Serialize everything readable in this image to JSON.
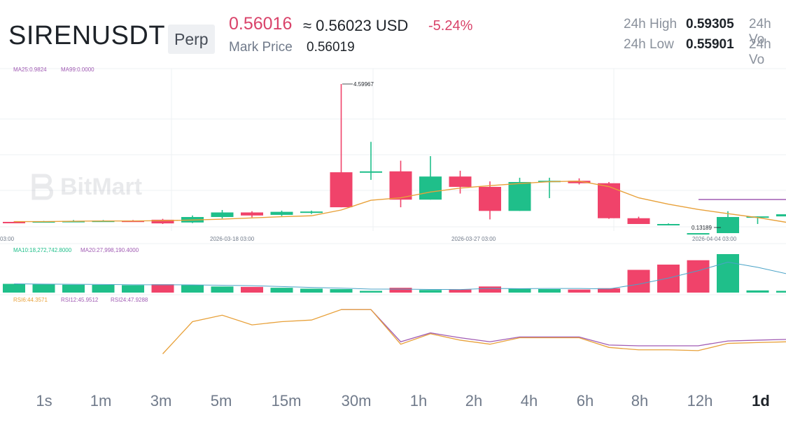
{
  "header": {
    "symbol": "SIRENUSDT",
    "contract_type": "Perp",
    "last_price": "0.56016",
    "usd_price": "≈ 0.56023 USD",
    "change": "-5.24%",
    "mark_price_label": "Mark Price",
    "mark_price": "0.56019",
    "high_label": "24h High",
    "high_value": "0.59305",
    "low_label": "24h Low",
    "low_value": "0.55901",
    "vol_label_1": "24h Vo",
    "vol_label_2": "24h Vo"
  },
  "colors": {
    "up": "#1fbf8a",
    "down": "#f0436a",
    "ma_orange": "#e8a13a",
    "ma_purple": "#a05bb3"
  },
  "watermark": "BitMart",
  "chart": {
    "ma_legend": {
      "ma25": "MA25:0.9824",
      "ma99": "MA99:0.0000"
    },
    "vol_legend": {
      "ma10": "MA10:18,272,742.8000",
      "ma20": "MA20:27,998,190.4000"
    },
    "rsi_legend": {
      "rsi6": "RSI6:44.3571",
      "rsi12": "RSI12:45.9512",
      "rsi24": "RSI24:47.9288"
    },
    "date_labels": [
      "03:00",
      "2026-03-18 03:00",
      "2026-03-27 03:00",
      "2026-04-04 03:00"
    ],
    "max_label": "4.59967",
    "min_label": "0.13189"
  },
  "chart_data": {
    "type": "candlestick",
    "ohlc_note": "relative price scale, values estimated",
    "candles": [
      {
        "o": 0.07,
        "h": 0.08,
        "l": 0.05,
        "c": 0.06
      },
      {
        "o": 0.07,
        "h": 0.1,
        "l": 0.05,
        "c": 0.09
      },
      {
        "o": 0.09,
        "h": 0.13,
        "l": 0.07,
        "c": 0.1
      },
      {
        "o": 0.1,
        "h": 0.13,
        "l": 0.08,
        "c": 0.11
      },
      {
        "o": 0.11,
        "h": 0.13,
        "l": 0.09,
        "c": 0.1
      },
      {
        "o": 0.14,
        "h": 0.17,
        "l": 0.0,
        "c": 0.02
      },
      {
        "o": 0.05,
        "h": 0.28,
        "l": 0.03,
        "c": 0.23
      },
      {
        "o": 0.23,
        "h": 0.46,
        "l": 0.18,
        "c": 0.38
      },
      {
        "o": 0.38,
        "h": 0.42,
        "l": 0.22,
        "c": 0.28
      },
      {
        "o": 0.3,
        "h": 0.44,
        "l": 0.26,
        "c": 0.4
      },
      {
        "o": 0.39,
        "h": 0.44,
        "l": 0.33,
        "c": 0.41
      },
      {
        "o": 1.7,
        "h": 4.6,
        "l": 0.55,
        "c": 0.55
      },
      {
        "o": 1.7,
        "h": 2.7,
        "l": 1.45,
        "c": 1.73
      },
      {
        "o": 1.73,
        "h": 2.08,
        "l": 0.55,
        "c": 0.8
      },
      {
        "o": 0.8,
        "h": 2.23,
        "l": 0.8,
        "c": 1.56
      },
      {
        "o": 1.56,
        "h": 1.75,
        "l": 1.0,
        "c": 1.22
      },
      {
        "o": 1.22,
        "h": 1.4,
        "l": 0.15,
        "c": 0.43
      },
      {
        "o": 0.43,
        "h": 1.52,
        "l": 0.43,
        "c": 1.38
      },
      {
        "o": 1.38,
        "h": 1.52,
        "l": 0.85,
        "c": 1.42
      },
      {
        "o": 1.42,
        "h": 1.5,
        "l": 1.3,
        "c": 1.34
      },
      {
        "o": 1.34,
        "h": 1.38,
        "l": 0.17,
        "c": 0.19
      },
      {
        "o": 0.19,
        "h": 0.24,
        "l": 0.0,
        "c": 0.0
      },
      {
        "o": 0.0,
        "h": 0.02,
        "l": 0.0,
        "c": 0.0
      },
      {
        "o": -0.3,
        "h": -0.3,
        "l": -0.3,
        "c": -0.3
      },
      {
        "o": -0.3,
        "h": 0.42,
        "l": -0.3,
        "c": 0.23
      },
      {
        "o": 0.23,
        "h": 0.25,
        "l": 0.0,
        "c": 0.25
      },
      {
        "o": 0.25,
        "h": 0.32,
        "l": 0.25,
        "c": 0.32
      }
    ],
    "ma25": [
      0.08,
      0.08,
      0.09,
      0.1,
      0.1,
      0.11,
      0.13,
      0.16,
      0.2,
      0.24,
      0.27,
      0.46,
      0.78,
      0.86,
      1.05,
      1.18,
      1.26,
      1.33,
      1.39,
      1.41,
      1.23,
      0.86,
      0.65,
      0.48,
      0.34,
      0.21,
      0.05
    ],
    "volume": [
      {
        "v": 1.0,
        "up": true
      },
      {
        "v": 0.95,
        "up": true
      },
      {
        "v": 0.9,
        "up": true
      },
      {
        "v": 0.88,
        "up": true
      },
      {
        "v": 0.85,
        "up": true
      },
      {
        "v": 0.95,
        "up": false
      },
      {
        "v": 0.85,
        "up": true
      },
      {
        "v": 0.7,
        "up": true
      },
      {
        "v": 0.65,
        "up": false
      },
      {
        "v": 0.55,
        "up": true
      },
      {
        "v": 0.45,
        "up": true
      },
      {
        "v": 0.4,
        "up": true
      },
      {
        "v": 0.2,
        "up": true
      },
      {
        "v": 0.55,
        "up": false
      },
      {
        "v": 0.3,
        "up": true
      },
      {
        "v": 0.35,
        "up": false
      },
      {
        "v": 0.7,
        "up": false
      },
      {
        "v": 0.45,
        "up": true
      },
      {
        "v": 0.4,
        "up": true
      },
      {
        "v": 0.35,
        "up": false
      },
      {
        "v": 0.5,
        "up": false
      },
      {
        "v": 2.6,
        "up": false
      },
      {
        "v": 3.2,
        "up": false
      },
      {
        "v": 3.7,
        "up": false
      },
      {
        "v": 4.4,
        "up": true
      },
      {
        "v": 0.25,
        "up": true
      },
      {
        "v": 0.2,
        "up": true
      }
    ],
    "rsi6": [
      null,
      null,
      null,
      null,
      null,
      30,
      70,
      78,
      66,
      70,
      72,
      85,
      85,
      42,
      55,
      47,
      42,
      50,
      50,
      50,
      38,
      35,
      35,
      34,
      43,
      44,
      45
    ],
    "rsi12": [
      null,
      null,
      null,
      null,
      null,
      null,
      null,
      null,
      null,
      null,
      null,
      85,
      85,
      45,
      56,
      50,
      45,
      51,
      51,
      51,
      41,
      40,
      40,
      40,
      46,
      47,
      48
    ]
  },
  "intervals": [
    "1s",
    "1m",
    "3m",
    "5m",
    "15m",
    "30m",
    "1h",
    "2h",
    "4h",
    "6h",
    "8h",
    "12h",
    "1d"
  ],
  "active_interval": "1d"
}
